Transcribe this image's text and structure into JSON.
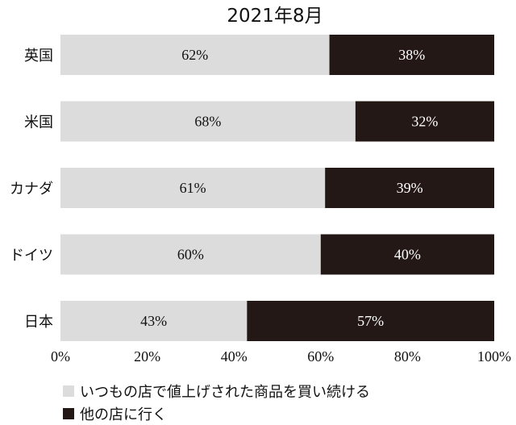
{
  "chart_data": {
    "type": "bar",
    "orientation": "horizontal",
    "stacked": "percent",
    "title": "2021年8月",
    "categories": [
      "英国",
      "米国",
      "カナダ",
      "ドイツ",
      "日本"
    ],
    "series": [
      {
        "name": "いつもの店で値上げされた商品を買い続ける",
        "values": [
          62,
          68,
          61,
          60,
          43
        ],
        "labels": [
          "62%",
          "68%",
          "61%",
          "60%",
          "43%"
        ],
        "color": "#dcdcdc",
        "label_color": "#111111"
      },
      {
        "name": "他の店に行く",
        "values": [
          38,
          32,
          39,
          40,
          57
        ],
        "labels": [
          "38%",
          "32%",
          "39%",
          "40%",
          "57%"
        ],
        "color": "#231815",
        "label_color": "#ffffff"
      }
    ],
    "xlim": [
      0,
      100
    ],
    "xticks": [
      "0%",
      "20%",
      "40%",
      "60%",
      "80%",
      "100%"
    ],
    "grid": false,
    "legend_position": "bottom-left"
  }
}
